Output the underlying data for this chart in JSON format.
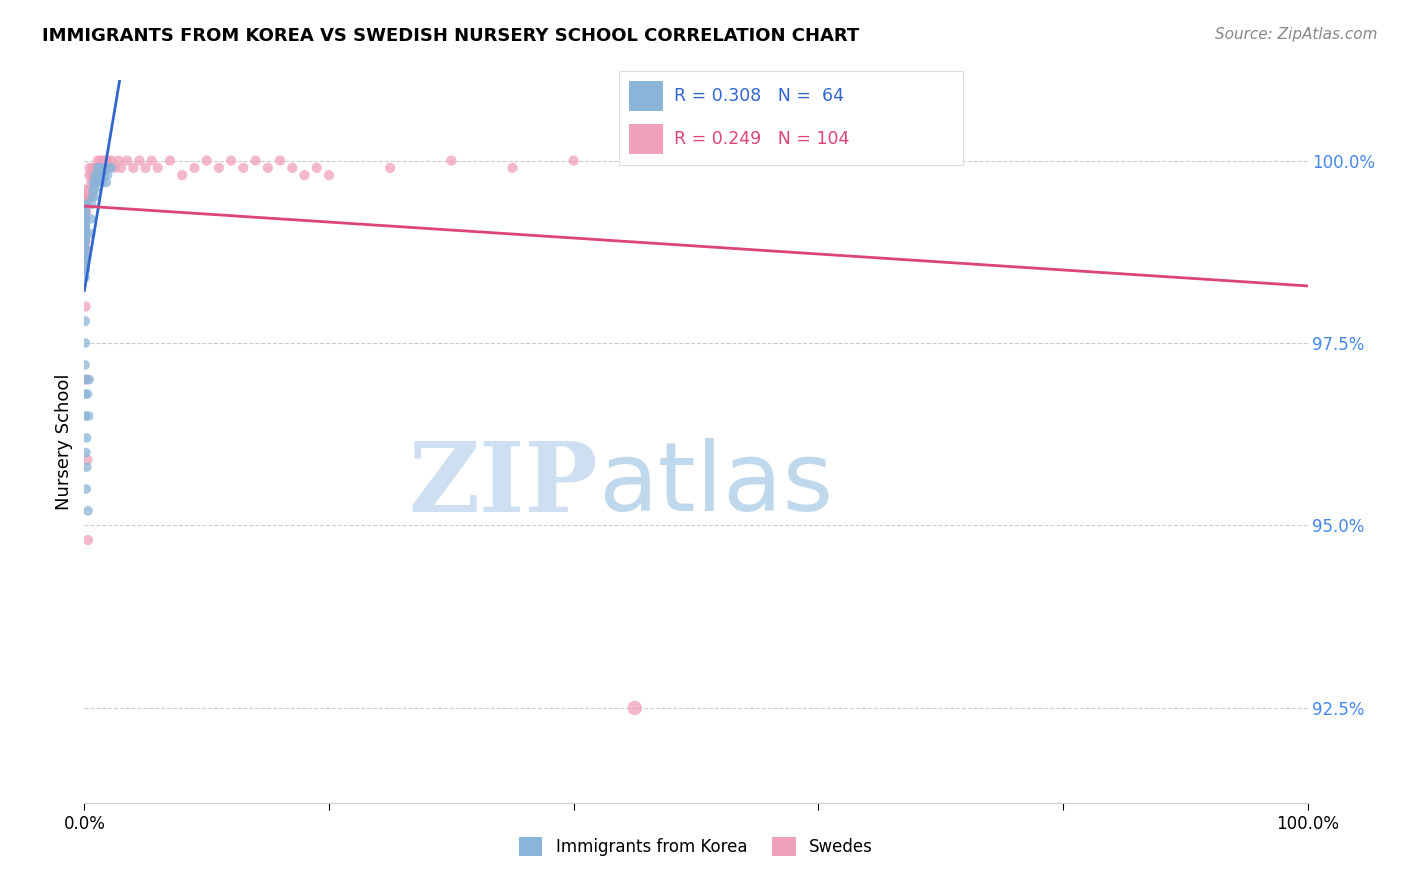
{
  "title": "IMMIGRANTS FROM KOREA VS SWEDISH NURSERY SCHOOL CORRELATION CHART",
  "source": "Source: ZipAtlas.com",
  "ylabel": "Nursery School",
  "korea_color": "#8ab4d8",
  "swedes_color": "#f0a0b8",
  "korea_line_color": "#3366cc",
  "swedes_line_color": "#dd4477",
  "legend_korea_label": "Immigrants from Korea",
  "legend_swedes_label": "Swedes",
  "watermark_zip": "ZIP",
  "watermark_atlas": "atlas",
  "korea_x": [
    0.001,
    0.002,
    0.003,
    0.004,
    0.005,
    0.006,
    0.007,
    0.008,
    0.009,
    0.01,
    0.011,
    0.012,
    0.013,
    0.014,
    0.015,
    0.016,
    0.017,
    0.018,
    0.019,
    0.02,
    0.022,
    0.024,
    0.026,
    0.028,
    0.03,
    0.035,
    0.04,
    0.05,
    0.06,
    0.07,
    0.08,
    0.1,
    0.12,
    0.15,
    0.18,
    0.2,
    0.25,
    0.3,
    0.35,
    0.4,
    0.5,
    0.55,
    0.6,
    0.65,
    0.7,
    0.75,
    0.8,
    0.85,
    0.9,
    0.95,
    1.0,
    1.05,
    1.1,
    1.15,
    1.2,
    1.3,
    1.4,
    1.5,
    1.6,
    1.7,
    1.8,
    1.9,
    2.0,
    2.2
  ],
  "korea_y": [
    98.5,
    99.0,
    98.8,
    99.2,
    98.6,
    99.1,
    98.9,
    99.4,
    99.0,
    98.7,
    99.3,
    98.5,
    99.1,
    98.8,
    99.4,
    98.9,
    99.2,
    98.7,
    99.0,
    98.6,
    99.3,
    98.9,
    99.2,
    98.8,
    99.1,
    98.4,
    97.8,
    97.2,
    96.8,
    97.5,
    97.0,
    96.5,
    96.0,
    95.5,
    96.2,
    95.8,
    96.8,
    95.2,
    96.5,
    97.0,
    99.0,
    99.2,
    99.4,
    99.5,
    99.6,
    99.7,
    99.5,
    99.8,
    99.6,
    99.7,
    99.8,
    99.7,
    99.9,
    99.8,
    99.9,
    99.8,
    99.9,
    99.7,
    99.8,
    99.9,
    99.7,
    99.8,
    99.9,
    99.9
  ],
  "korea_size": [
    50,
    40,
    35,
    45,
    55,
    40,
    45,
    50,
    45,
    60,
    50,
    45,
    55,
    40,
    50,
    45,
    55,
    45,
    50,
    45,
    45,
    45,
    45,
    45,
    45,
    45,
    45,
    40,
    40,
    40,
    40,
    40,
    40,
    40,
    40,
    40,
    40,
    40,
    40,
    40,
    40,
    40,
    40,
    40,
    40,
    40,
    40,
    40,
    40,
    40,
    40,
    40,
    40,
    40,
    40,
    40,
    40,
    40,
    40,
    40,
    40,
    40,
    40,
    40
  ],
  "swedes_x": [
    0.001,
    0.002,
    0.003,
    0.004,
    0.005,
    0.006,
    0.007,
    0.008,
    0.009,
    0.01,
    0.011,
    0.012,
    0.013,
    0.014,
    0.015,
    0.016,
    0.017,
    0.018,
    0.019,
    0.02,
    0.021,
    0.022,
    0.023,
    0.024,
    0.025,
    0.026,
    0.027,
    0.028,
    0.03,
    0.032,
    0.034,
    0.036,
    0.038,
    0.04,
    0.042,
    0.045,
    0.048,
    0.05,
    0.055,
    0.06,
    0.065,
    0.07,
    0.08,
    0.09,
    0.1,
    0.12,
    0.15,
    0.18,
    0.2,
    0.25,
    0.3,
    0.35,
    0.4,
    0.42,
    0.5,
    0.55,
    0.6,
    0.65,
    0.7,
    0.75,
    0.8,
    0.85,
    0.9,
    0.95,
    1.0,
    1.1,
    1.2,
    1.3,
    1.4,
    1.5,
    1.6,
    1.7,
    1.8,
    1.9,
    2.0,
    2.2,
    2.5,
    2.8,
    3.0,
    3.5,
    4.0,
    4.5,
    5.0,
    5.5,
    6.0,
    7.0,
    8.0,
    9.0,
    10.0,
    11.0,
    12.0,
    13.0,
    14.0,
    15.0,
    16.0,
    17.0,
    18.0,
    19.0,
    20.0,
    25.0,
    30.0,
    35.0,
    40.0,
    45.0
  ],
  "swedes_y": [
    99.1,
    99.4,
    99.2,
    99.6,
    98.9,
    99.3,
    99.0,
    98.8,
    99.5,
    99.2,
    98.7,
    99.4,
    99.1,
    98.6,
    99.3,
    99.0,
    98.8,
    99.4,
    99.2,
    99.0,
    98.7,
    99.3,
    99.0,
    98.8,
    99.3,
    99.0,
    98.7,
    99.2,
    99.0,
    98.9,
    99.3,
    98.8,
    99.2,
    99.0,
    98.7,
    99.3,
    98.9,
    99.2,
    99.4,
    98.6,
    99.2,
    99.0,
    99.3,
    99.4,
    98.0,
    99.5,
    99.3,
    99.6,
    97.0,
    95.9,
    94.8,
    99.5,
    99.8,
    99.9,
    99.5,
    99.7,
    99.8,
    99.9,
    99.6,
    99.7,
    99.8,
    99.9,
    99.7,
    99.8,
    99.9,
    100.0,
    99.9,
    100.0,
    99.9,
    100.0,
    99.9,
    100.0,
    99.9,
    100.0,
    99.9,
    100.0,
    99.9,
    100.0,
    99.9,
    100.0,
    99.9,
    100.0,
    99.9,
    100.0,
    99.9,
    100.0,
    99.8,
    99.9,
    100.0,
    99.9,
    100.0,
    99.9,
    100.0,
    99.9,
    100.0,
    99.9,
    99.8,
    99.9,
    99.8,
    99.9,
    100.0,
    99.9,
    100.0,
    92.5
  ],
  "swedes_size": [
    55,
    35,
    30,
    45,
    65,
    40,
    45,
    55,
    45,
    60,
    50,
    45,
    55,
    40,
    50,
    45,
    55,
    50,
    50,
    55,
    45,
    50,
    45,
    50,
    45,
    50,
    45,
    50,
    55,
    45,
    50,
    45,
    50,
    45,
    50,
    45,
    50,
    45,
    45,
    45,
    45,
    45,
    45,
    45,
    45,
    45,
    45,
    45,
    45,
    45,
    45,
    45,
    45,
    45,
    45,
    45,
    45,
    45,
    45,
    45,
    45,
    45,
    45,
    45,
    45,
    45,
    45,
    45,
    45,
    45,
    45,
    45,
    45,
    45,
    45,
    45,
    45,
    45,
    45,
    45,
    45,
    45,
    45,
    45,
    45,
    45,
    45,
    45,
    45,
    45,
    45,
    45,
    45,
    45,
    45,
    45,
    45,
    45,
    45,
    45,
    45,
    45,
    45,
    90
  ]
}
